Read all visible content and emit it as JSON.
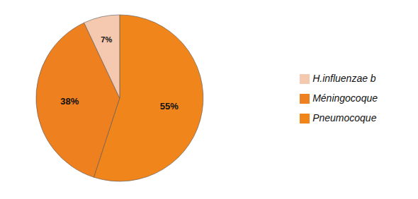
{
  "chart_data": {
    "type": "pie",
    "categories": [
      "Pneumocoque",
      "Méningocoque",
      "H.influenzae b"
    ],
    "values": [
      55,
      38,
      7
    ],
    "value_labels": [
      "55%",
      "38%",
      "7%"
    ],
    "colors": [
      "#F0851C",
      "#EE8020",
      "#F5C8B0"
    ],
    "data_labels": true,
    "legend": "right"
  }
}
